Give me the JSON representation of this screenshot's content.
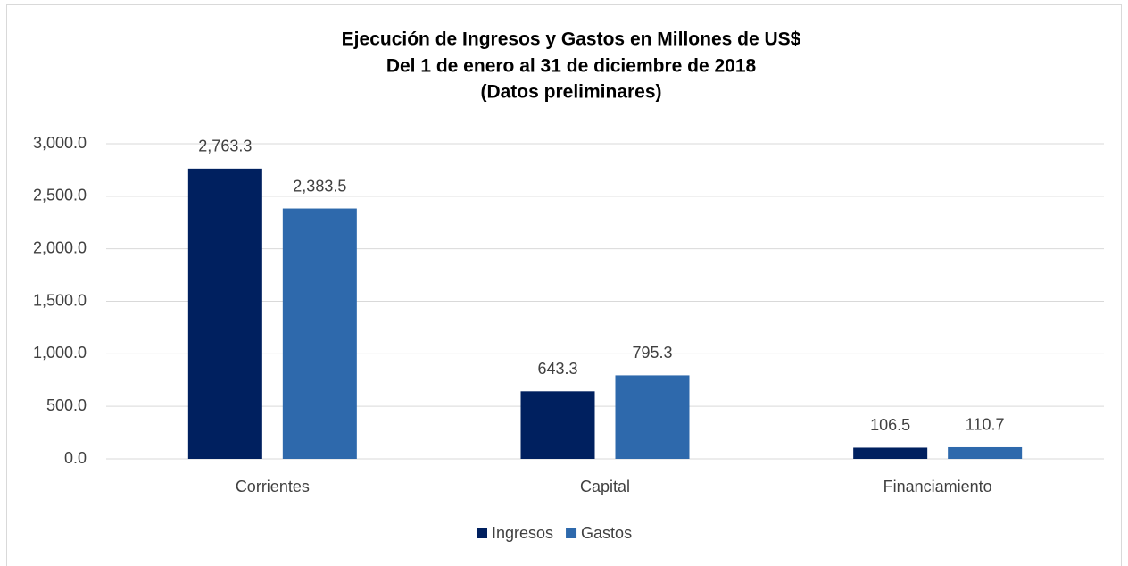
{
  "chart_data": {
    "type": "bar",
    "title": [
      "Ejecución de Ingresos y Gastos en Millones de US$",
      "Del 1 de enero al 31 de diciembre de 2018",
      "(Datos preliminares)"
    ],
    "categories": [
      "Corrientes",
      "Capital",
      "Financiamiento"
    ],
    "series": [
      {
        "name": "Ingresos",
        "color": "#00205f",
        "values": [
          2763.3,
          643.3,
          106.5
        ],
        "value_labels": [
          "2,763.3",
          "643.3",
          "106.5"
        ]
      },
      {
        "name": "Gastos",
        "color": "#2e69ac",
        "values": [
          2383.5,
          795.3,
          110.7
        ],
        "value_labels": [
          "2,383.5",
          "795.3",
          "110.7"
        ]
      }
    ],
    "ylim": [
      0,
      3000
    ],
    "yticks": [
      {
        "value": 0,
        "label": "0.0"
      },
      {
        "value": 500,
        "label": "500.0"
      },
      {
        "value": 1000,
        "label": "1,000.0"
      },
      {
        "value": 1500,
        "label": "1,500.0"
      },
      {
        "value": 2000,
        "label": "2,000.0"
      },
      {
        "value": 2500,
        "label": "2,500.0"
      },
      {
        "value": 3000,
        "label": "3,000.0"
      }
    ],
    "grid": true,
    "legend": "bottom"
  }
}
